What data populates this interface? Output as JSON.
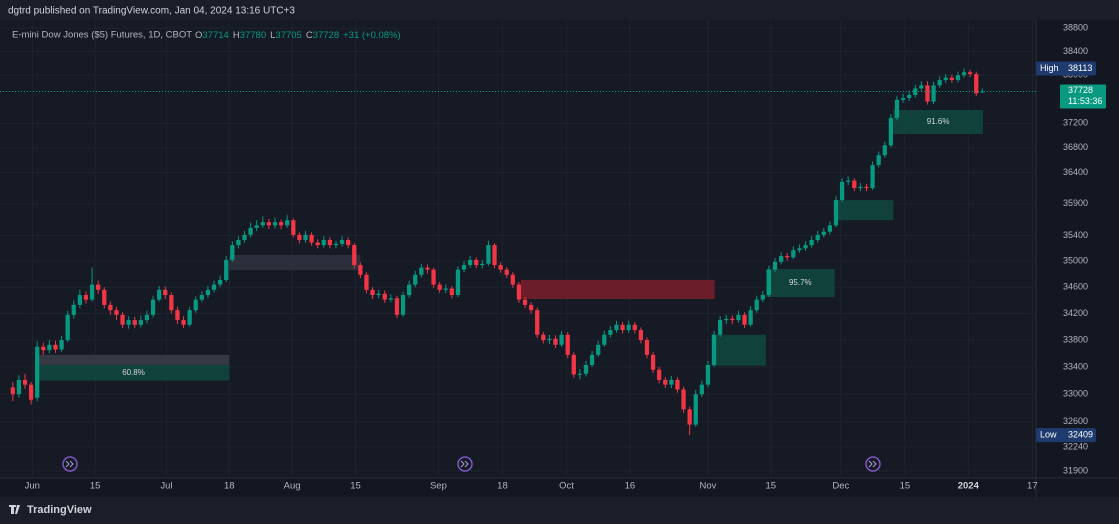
{
  "chart_data": {
    "type": "candlestick",
    "publisher": "dgtrd published on TradingView.com, Jan 04, 2024 13:16 UTC+3",
    "title": "E-mini Dow Jones ($5) Futures, 1D, CBOT",
    "ohlc_labels": [
      "O",
      "H",
      "L",
      "C"
    ],
    "change_label": "+31 (+0.08%)",
    "countdown": "11:53:36",
    "high_label": "High",
    "low_label": "Low",
    "brand": "TradingView",
    "up_color": "#089981",
    "down_color": "#f23645",
    "log_scale": true,
    "grid": true,
    "ylim": [
      31800,
      38940
    ],
    "yticks": [
      31900,
      32240,
      32600,
      33000,
      33400,
      33800,
      34200,
      34600,
      35000,
      35400,
      35900,
      36400,
      36800,
      37200,
      38000,
      38400,
      38800
    ],
    "xlim": [
      -2.1,
      167.8
    ],
    "xticks": [
      {
        "value": 3.2,
        "label": "Jun"
      },
      {
        "value": 13.5,
        "label": "15"
      },
      {
        "value": 25.2,
        "label": "Jul"
      },
      {
        "value": 35.5,
        "label": "18"
      },
      {
        "value": 45.8,
        "label": "Aug"
      },
      {
        "value": 56.2,
        "label": "15"
      },
      {
        "value": 69.8,
        "label": "Sep"
      },
      {
        "value": 80.3,
        "label": "18"
      },
      {
        "value": 90.8,
        "label": "Oct"
      },
      {
        "value": 101.2,
        "label": "16"
      },
      {
        "value": 114,
        "label": "Nov"
      },
      {
        "value": 124.3,
        "label": "15"
      },
      {
        "value": 135.8,
        "label": "Dec"
      },
      {
        "value": 146.3,
        "label": "15"
      },
      {
        "value": 156.7,
        "label": "2024"
      },
      {
        "value": 167.2,
        "label": "17"
      }
    ],
    "open": [
      33100,
      33000,
      33210,
      33140,
      32950,
      33700,
      33650,
      33730,
      33660,
      33800,
      34180,
      34330,
      34480,
      34410,
      34640,
      34560,
      34330,
      34250,
      34180,
      34030,
      34100,
      34030,
      34100,
      34180,
      34410,
      34560,
      34480,
      34250,
      34100,
      34030,
      34250,
      34410,
      34480,
      34560,
      34640,
      34710,
      35020,
      35250,
      35330,
      35410,
      35520,
      35560,
      35610,
      35560,
      35610,
      35560,
      35640,
      35410,
      35330,
      35410,
      35290,
      35250,
      35330,
      35250,
      35270,
      35330,
      35250,
      34940,
      34790,
      34560,
      34480,
      34500,
      34410,
      34430,
      34180,
      34480,
      34640,
      34790,
      34900,
      34870,
      34640,
      34560,
      34580,
      34480,
      34870,
      34940,
      35020,
      34940,
      34960,
      35250,
      34940,
      34870,
      34790,
      34640,
      34410,
      34330,
      34250,
      33880,
      33800,
      33820,
      33730,
      33880,
      33580,
      33290,
      33300,
      33430,
      33580,
      33730,
      33880,
      33950,
      34030,
      33950,
      34030,
      33950,
      33800,
      33580,
      33360,
      33210,
      33140,
      33210,
      33070,
      32780,
      32560,
      33000,
      33140,
      33430,
      33880,
      34100,
      34120,
      34100,
      34180,
      34030,
      34250,
      34410,
      34480,
      34870,
      34990,
      35080,
      35060,
      35170,
      35200,
      35250,
      35330,
      35410,
      35460,
      35560,
      35960,
      36250,
      36270,
      36150,
      36170,
      36150,
      36520,
      36680,
      36840,
      37290,
      37590,
      37620,
      37670,
      37780,
      37830,
      37560,
      37830,
      37920,
      37960,
      37920,
      38000,
      38050,
      38020,
      37714
    ],
    "high": [
      33180,
      33280,
      33300,
      33180,
      33780,
      33760,
      33800,
      33790,
      33860,
      34240,
      34400,
      34560,
      34540,
      34900,
      34700,
      34600,
      34380,
      34300,
      34220,
      34160,
      34150,
      34170,
      34240,
      34470,
      34620,
      34610,
      34520,
      34300,
      34160,
      34300,
      34460,
      34540,
      34620,
      34700,
      34780,
      35080,
      35310,
      35390,
      35470,
      35600,
      35640,
      35700,
      35660,
      35680,
      35650,
      35720,
      35670,
      35450,
      35470,
      35450,
      35340,
      35390,
      35370,
      35320,
      35390,
      35370,
      35280,
      34980,
      34830,
      34600,
      34560,
      34550,
      34490,
      34470,
      34530,
      34700,
      34850,
      34960,
      34950,
      34900,
      34680,
      34640,
      34620,
      34920,
      35000,
      35080,
      35060,
      35020,
      35320,
      35280,
      34980,
      34910,
      34830,
      34680,
      34450,
      34370,
      34290,
      33920,
      33880,
      33870,
      33940,
      33920,
      33620,
      33370,
      33490,
      33640,
      33790,
      33940,
      34010,
      34090,
      34070,
      34090,
      34070,
      33990,
      33840,
      33620,
      33400,
      33250,
      33270,
      33250,
      33110,
      32820,
      33060,
      33200,
      33490,
      33940,
      34160,
      34180,
      34170,
      34240,
      34220,
      34310,
      34470,
      34540,
      34930,
      35050,
      35140,
      35130,
      35230,
      35260,
      35310,
      35390,
      35470,
      35520,
      35620,
      36020,
      36310,
      36340,
      36310,
      36230,
      36220,
      36580,
      36740,
      36900,
      37350,
      37650,
      37690,
      37740,
      37840,
      37900,
      37900,
      37890,
      37980,
      38020,
      38010,
      38060,
      38113,
      38090,
      38060,
      37780
    ],
    "low": [
      32900,
      32950,
      33080,
      32850,
      32900,
      33580,
      33600,
      33610,
      33620,
      33770,
      34120,
      34280,
      34350,
      34380,
      34500,
      34280,
      34180,
      34100,
      33980,
      33970,
      33980,
      33990,
      34050,
      34140,
      34380,
      34420,
      34200,
      34040,
      33980,
      34000,
      34210,
      34370,
      34440,
      34520,
      34600,
      34680,
      34990,
      35200,
      35290,
      35370,
      35470,
      35520,
      35500,
      35510,
      35500,
      35520,
      35370,
      35280,
      35290,
      35240,
      35200,
      35210,
      35200,
      35200,
      35230,
      35200,
      34890,
      34740,
      34510,
      34420,
      34430,
      34360,
      34370,
      34130,
      34150,
      34440,
      34600,
      34750,
      34810,
      34590,
      34510,
      34510,
      34430,
      34450,
      34830,
      34900,
      34890,
      34890,
      34930,
      34890,
      34820,
      34740,
      34590,
      34360,
      34280,
      34200,
      33830,
      33750,
      33740,
      33680,
      33700,
      33530,
      33240,
      33220,
      33260,
      33400,
      33550,
      33700,
      33840,
      33910,
      33900,
      33910,
      33900,
      33750,
      33530,
      33310,
      33160,
      33090,
      33090,
      33020,
      32730,
      32409,
      32530,
      32960,
      33100,
      33400,
      33850,
      34040,
      34040,
      34060,
      33980,
      34000,
      34210,
      34370,
      34450,
      34830,
      34950,
      35010,
      35030,
      35130,
      35160,
      35210,
      35290,
      35370,
      35420,
      35530,
      35930,
      36200,
      36100,
      36100,
      36100,
      36120,
      36480,
      36640,
      36810,
      37250,
      37540,
      37570,
      37630,
      37740,
      37510,
      37520,
      37790,
      37870,
      37870,
      37880,
      37960,
      37970,
      37650,
      37705
    ],
    "close": [
      33000,
      33210,
      33140,
      32920,
      33700,
      33650,
      33730,
      33660,
      33800,
      34180,
      34330,
      34480,
      34410,
      34640,
      34560,
      34330,
      34250,
      34180,
      34030,
      34100,
      34030,
      34100,
      34180,
      34410,
      34560,
      34480,
      34250,
      34100,
      34030,
      34250,
      34410,
      34480,
      34560,
      34640,
      34710,
      35020,
      35250,
      35330,
      35410,
      35520,
      35560,
      35610,
      35560,
      35610,
      35560,
      35640,
      35410,
      35330,
      35410,
      35290,
      35250,
      35330,
      35250,
      35270,
      35330,
      35250,
      34940,
      34790,
      34560,
      34480,
      34500,
      34410,
      34430,
      34180,
      34480,
      34640,
      34790,
      34900,
      34870,
      34640,
      34560,
      34580,
      34480,
      34870,
      34940,
      35020,
      34940,
      34960,
      35250,
      34940,
      34870,
      34790,
      34640,
      34410,
      34330,
      34250,
      33880,
      33800,
      33820,
      33730,
      33880,
      33580,
      33290,
      33300,
      33430,
      33580,
      33730,
      33880,
      33950,
      34030,
      33950,
      34030,
      33950,
      33800,
      33580,
      33360,
      33210,
      33140,
      33210,
      33070,
      32780,
      32560,
      33000,
      33140,
      33430,
      33880,
      34100,
      34120,
      34100,
      34180,
      34030,
      34250,
      34410,
      34480,
      34870,
      34990,
      35080,
      35060,
      35170,
      35200,
      35250,
      35330,
      35410,
      35460,
      35560,
      35960,
      36250,
      36270,
      36150,
      36170,
      36150,
      36520,
      36680,
      36840,
      37290,
      37590,
      37620,
      37670,
      37780,
      37830,
      37560,
      37830,
      37920,
      37960,
      37920,
      38000,
      38050,
      38020,
      37697,
      37728
    ],
    "zones": [
      {
        "x0": 4.1,
        "x1": 35.5,
        "top": 33580,
        "bottom": 33430,
        "color": "#3a3d4a"
      },
      {
        "x0": 4.1,
        "x1": 35.5,
        "top": 33430,
        "bottom": 33200,
        "color": "#0f4a40",
        "label": "60.8%"
      },
      {
        "x0": 35.5,
        "x1": 57,
        "top": 35097,
        "bottom": 34860,
        "color": "#2f3240"
      },
      {
        "x0": 83.3,
        "x1": 115.1,
        "top": 34712,
        "bottom": 34420,
        "color": "#7a1f2b"
      },
      {
        "x0": 114.6,
        "x1": 123.5,
        "top": 33879,
        "bottom": 33420,
        "color": "#0f4a40"
      },
      {
        "x0": 123.5,
        "x1": 134.8,
        "top": 34880,
        "bottom": 34450,
        "color": "#0f4a40",
        "label": "95.7%"
      },
      {
        "x0": 134.8,
        "x1": 144.4,
        "top": 35959,
        "bottom": 35640,
        "color": "#0f4a40"
      },
      {
        "x0": 144.4,
        "x1": 159.1,
        "top": 37420,
        "bottom": 37025,
        "color": "#0f4a40",
        "label": "91.6%"
      }
    ]
  }
}
